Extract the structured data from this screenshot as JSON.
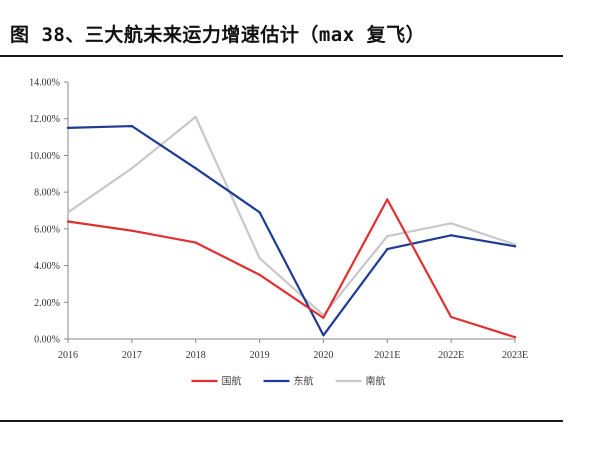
{
  "figure": {
    "title": "图 38、三大航未来运力增速估计（max 复飞）"
  },
  "chart_data": {
    "type": "line",
    "categories": [
      "2016",
      "2017",
      "2018",
      "2019",
      "2020",
      "2021E",
      "2022E",
      "2023E"
    ],
    "y_ticks": [
      "0.00%",
      "2.00%",
      "4.00%",
      "6.00%",
      "8.00%",
      "10.00%",
      "12.00%",
      "14.00%"
    ],
    "ylim": [
      0,
      14
    ],
    "y_unit": "%",
    "grid": false,
    "legend_position": "bottom-center",
    "series": [
      {
        "name": "国航",
        "color": "#e03030",
        "values": [
          6.4,
          5.9,
          5.25,
          3.5,
          1.15,
          7.6,
          1.2,
          0.1
        ]
      },
      {
        "name": "东航",
        "color": "#1f3c95",
        "values": [
          11.5,
          11.6,
          9.3,
          6.9,
          0.2,
          4.9,
          5.65,
          5.05
        ]
      },
      {
        "name": "南航",
        "color": "#c8c8c8",
        "values": [
          6.9,
          9.3,
          12.1,
          4.4,
          1.3,
          5.6,
          6.3,
          5.15
        ]
      }
    ]
  }
}
